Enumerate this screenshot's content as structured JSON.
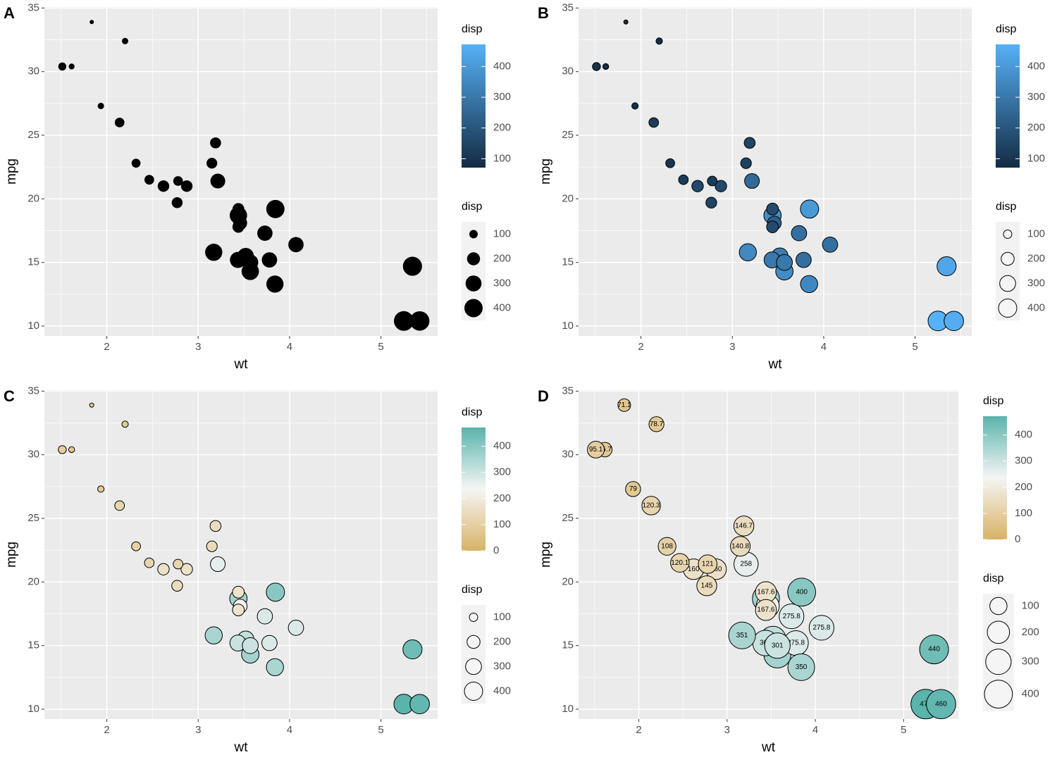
{
  "chart_data": [
    {
      "type": "scatter",
      "tag": "A",
      "x_label": "wt",
      "y_label": "mpg",
      "xlim": [
        1.317,
        5.62
      ],
      "ylim": [
        9.225,
        35.075
      ],
      "xticks": [
        2,
        3,
        4,
        5
      ],
      "yticks": [
        10,
        15,
        20,
        25,
        30,
        35
      ],
      "xminor": [
        1.5,
        2.5,
        3.5,
        4.5,
        5.5
      ],
      "yminor": [
        12.5,
        17.5,
        22.5,
        27.5,
        32.5
      ],
      "grid": true,
      "x": [
        2.62,
        2.875,
        2.32,
        3.215,
        3.44,
        3.46,
        3.57,
        3.19,
        3.15,
        3.44,
        3.44,
        4.07,
        3.73,
        3.78,
        5.25,
        5.424,
        5.345,
        2.2,
        1.615,
        1.835,
        2.465,
        3.52,
        3.435,
        3.84,
        3.845,
        1.935,
        2.14,
        1.513,
        3.17,
        2.77,
        3.57,
        2.78
      ],
      "y": [
        21,
        21,
        22.8,
        21.4,
        18.7,
        18.1,
        14.3,
        24.4,
        22.8,
        19.2,
        17.8,
        16.4,
        17.3,
        15.2,
        10.4,
        10.4,
        14.7,
        32.4,
        30.4,
        33.9,
        21.5,
        15.5,
        15.2,
        13.3,
        19.2,
        27.3,
        26,
        30.4,
        15.8,
        19.7,
        15,
        21.4
      ],
      "size": [
        160,
        160,
        108,
        258,
        360,
        225,
        360,
        146.7,
        140.8,
        167.6,
        167.6,
        275.8,
        275.8,
        275.8,
        472,
        460,
        440,
        78.7,
        75.7,
        71.1,
        120.1,
        318,
        304,
        350,
        400,
        79,
        120.3,
        95.1,
        351,
        145,
        301,
        121
      ],
      "color_label": "disp",
      "color_ticks": [
        100,
        200,
        300,
        400
      ],
      "color_scale": [
        "#132B43",
        "#56B1F7"
      ],
      "size_label": "disp",
      "size_breaks": [
        100,
        200,
        300,
        400
      ],
      "point_fill": "#000000",
      "fill_by_size": false,
      "data_labels": false
    },
    {
      "type": "scatter",
      "tag": "B",
      "x_label": "wt",
      "y_label": "mpg",
      "xlim": [
        1.317,
        5.62
      ],
      "ylim": [
        9.225,
        35.075
      ],
      "xticks": [
        2,
        3,
        4,
        5
      ],
      "yticks": [
        10,
        15,
        20,
        25,
        30,
        35
      ],
      "xminor": [
        1.5,
        2.5,
        3.5,
        4.5,
        5.5
      ],
      "yminor": [
        12.5,
        17.5,
        22.5,
        27.5,
        32.5
      ],
      "grid": true,
      "x": [
        2.62,
        2.875,
        2.32,
        3.215,
        3.44,
        3.46,
        3.57,
        3.19,
        3.15,
        3.44,
        3.44,
        4.07,
        3.73,
        3.78,
        5.25,
        5.424,
        5.345,
        2.2,
        1.615,
        1.835,
        2.465,
        3.52,
        3.435,
        3.84,
        3.845,
        1.935,
        2.14,
        1.513,
        3.17,
        2.77,
        3.57,
        2.78
      ],
      "y": [
        21,
        21,
        22.8,
        21.4,
        18.7,
        18.1,
        14.3,
        24.4,
        22.8,
        19.2,
        17.8,
        16.4,
        17.3,
        15.2,
        10.4,
        10.4,
        14.7,
        32.4,
        30.4,
        33.9,
        21.5,
        15.5,
        15.2,
        13.3,
        19.2,
        27.3,
        26,
        30.4,
        15.8,
        19.7,
        15,
        21.4
      ],
      "size": [
        160,
        160,
        108,
        258,
        360,
        225,
        360,
        146.7,
        140.8,
        167.6,
        167.6,
        275.8,
        275.8,
        275.8,
        472,
        460,
        440,
        78.7,
        75.7,
        71.1,
        120.1,
        318,
        304,
        350,
        400,
        79,
        120.3,
        95.1,
        351,
        145,
        301,
        121
      ],
      "color_label": "disp",
      "color_ticks": [
        100,
        200,
        300,
        400
      ],
      "color_scale": [
        "#132B43",
        "#56B1F7"
      ],
      "size_label": "disp",
      "size_breaks": [
        100,
        200,
        300,
        400
      ],
      "point_fill": null,
      "fill_by_size": true,
      "data_labels": false
    },
    {
      "type": "scatter",
      "tag": "C",
      "x_label": "wt",
      "y_label": "mpg",
      "xlim": [
        1.317,
        5.62
      ],
      "ylim": [
        9.225,
        35.075
      ],
      "xticks": [
        2,
        3,
        4,
        5
      ],
      "yticks": [
        10,
        15,
        20,
        25,
        30,
        35
      ],
      "xminor": [
        1.5,
        2.5,
        3.5,
        4.5,
        5.5
      ],
      "yminor": [
        12.5,
        17.5,
        22.5,
        27.5,
        32.5
      ],
      "grid": true,
      "x": [
        2.62,
        2.875,
        2.32,
        3.215,
        3.44,
        3.46,
        3.57,
        3.19,
        3.15,
        3.44,
        3.44,
        4.07,
        3.73,
        3.78,
        5.25,
        5.424,
        5.345,
        2.2,
        1.615,
        1.835,
        2.465,
        3.52,
        3.435,
        3.84,
        3.845,
        1.935,
        2.14,
        1.513,
        3.17,
        2.77,
        3.57,
        2.78
      ],
      "y": [
        21,
        21,
        22.8,
        21.4,
        18.7,
        18.1,
        14.3,
        24.4,
        22.8,
        19.2,
        17.8,
        16.4,
        17.3,
        15.2,
        10.4,
        10.4,
        14.7,
        32.4,
        30.4,
        33.9,
        21.5,
        15.5,
        15.2,
        13.3,
        19.2,
        27.3,
        26,
        30.4,
        15.8,
        19.7,
        15,
        21.4
      ],
      "size": [
        160,
        160,
        108,
        258,
        360,
        225,
        360,
        146.7,
        140.8,
        167.6,
        167.6,
        275.8,
        275.8,
        275.8,
        472,
        460,
        440,
        78.7,
        75.7,
        71.1,
        120.1,
        318,
        304,
        350,
        400,
        79,
        120.3,
        95.1,
        351,
        145,
        301,
        121
      ],
      "color_label": "disp",
      "color_ticks": [
        0,
        100,
        200,
        300,
        400
      ],
      "color_scale": [
        "#D8B365",
        "#F5F5F5",
        "#5AB4AC"
      ],
      "size_label": "disp",
      "size_breaks": [
        100,
        200,
        300,
        400
      ],
      "point_fill": null,
      "fill_by_size": true,
      "data_labels": false
    },
    {
      "type": "scatter",
      "tag": "D",
      "x_label": "wt",
      "y_label": "mpg",
      "xlim": [
        1.317,
        5.62
      ],
      "ylim": [
        9.225,
        35.075
      ],
      "xticks": [
        2,
        3,
        4,
        5
      ],
      "yticks": [
        10,
        15,
        20,
        25,
        30,
        35
      ],
      "xminor": [
        1.5,
        2.5,
        3.5,
        4.5,
        5.5
      ],
      "yminor": [
        12.5,
        17.5,
        22.5,
        27.5,
        32.5
      ],
      "grid": true,
      "x": [
        2.62,
        2.875,
        2.32,
        3.215,
        3.44,
        3.46,
        3.57,
        3.19,
        3.15,
        3.44,
        3.44,
        4.07,
        3.73,
        3.78,
        5.25,
        5.424,
        5.345,
        2.2,
        1.615,
        1.835,
        2.465,
        3.52,
        3.435,
        3.84,
        3.845,
        1.935,
        2.14,
        1.513,
        3.17,
        2.77,
        3.57,
        2.78
      ],
      "y": [
        21,
        21,
        22.8,
        21.4,
        18.7,
        18.1,
        14.3,
        24.4,
        22.8,
        19.2,
        17.8,
        16.4,
        17.3,
        15.2,
        10.4,
        10.4,
        14.7,
        32.4,
        30.4,
        33.9,
        21.5,
        15.5,
        15.2,
        13.3,
        19.2,
        27.3,
        26,
        30.4,
        15.8,
        19.7,
        15,
        21.4
      ],
      "size": [
        160,
        160,
        108,
        258,
        360,
        225,
        360,
        146.7,
        140.8,
        167.6,
        167.6,
        275.8,
        275.8,
        275.8,
        472,
        460,
        440,
        78.7,
        75.7,
        71.1,
        120.1,
        318,
        304,
        350,
        400,
        79,
        120.3,
        95.1,
        351,
        145,
        301,
        121
      ],
      "color_label": "disp",
      "color_ticks": [
        0,
        100,
        200,
        300,
        400
      ],
      "color_scale": [
        "#D8B365",
        "#F5F5F5",
        "#5AB4AC"
      ],
      "size_label": "disp",
      "size_breaks": [
        100,
        200,
        300,
        400
      ],
      "point_fill": null,
      "fill_by_size": true,
      "data_labels": true
    }
  ]
}
